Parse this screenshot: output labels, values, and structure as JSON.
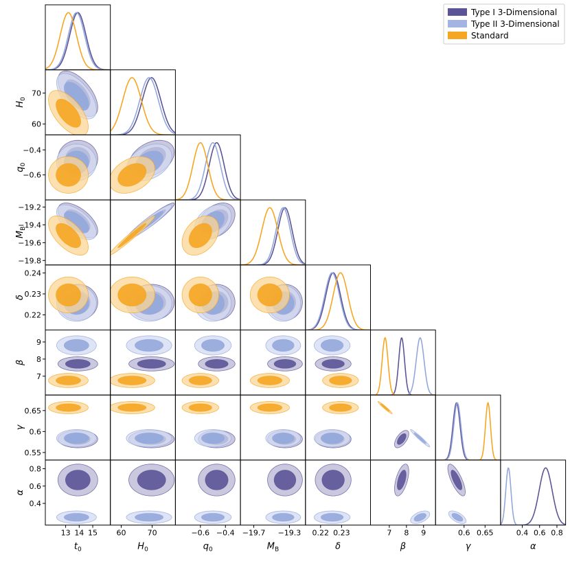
{
  "chart_data": {
    "type": "corner",
    "title": "",
    "legend": {
      "placement": "top-right",
      "entries": [
        {
          "name": "Type I 3-Dimensional",
          "color": "#5b5497"
        },
        {
          "name": "Type II 3-Dimensional",
          "color": "#a3b4e2"
        },
        {
          "name": "Standard",
          "color": "#f5a623"
        }
      ]
    },
    "parameters": [
      {
        "symbol": "t",
        "sub": "0",
        "range": [
          11.5,
          16.3
        ],
        "ticks": [
          13,
          14,
          15
        ]
      },
      {
        "symbol": "H",
        "sub": "0",
        "range": [
          56.5,
          77.5
        ],
        "ticks": [
          60,
          70
        ]
      },
      {
        "symbol": "q",
        "sub": "0",
        "range": [
          -0.8,
          -0.28
        ],
        "ticks": [
          -0.6,
          -0.4
        ]
      },
      {
        "symbol": "M",
        "sub": "B",
        "range": [
          -19.85,
          -19.12
        ],
        "ticks": [
          -19.7,
          -19.3
        ]
      },
      {
        "symbol": "δ",
        "sub": "",
        "range": [
          0.2128,
          0.2438
        ],
        "ticks": [
          0.22,
          0.23
        ]
      },
      {
        "symbol": "β",
        "sub": "",
        "range": [
          5.9,
          9.7
        ],
        "ticks": [
          7,
          8,
          9
        ]
      },
      {
        "symbol": "γ",
        "sub": "",
        "range": [
          0.532,
          0.687
        ],
        "ticks": [
          0.55,
          0.6,
          0.65
        ]
      },
      {
        "symbol": "α",
        "sub": "",
        "range": [
          0.15,
          0.9
        ],
        "ticks": [
          0.4,
          0.6,
          0.8
        ]
      }
    ],
    "row_ticks": {
      "1": [
        60,
        70
      ],
      "2": [
        -0.6,
        -0.4
      ],
      "3": [
        -19.8,
        -19.6,
        -19.4,
        -19.2
      ],
      "4": [
        0.22,
        0.23,
        0.24
      ],
      "5": [
        7,
        8,
        9
      ],
      "6": [
        0.55,
        0.6,
        0.65
      ],
      "7": [
        0.4,
        0.6,
        0.8
      ]
    },
    "bottom_ticks": {
      "0": [
        13,
        14,
        15
      ],
      "1": [
        60,
        70
      ],
      "2": [
        -0.6,
        -0.4
      ],
      "3": [
        -19.7,
        -19.3
      ],
      "4": [
        0.22,
        0.23
      ],
      "5": [
        7,
        8,
        9
      ],
      "6": [
        0.6,
        0.65
      ],
      "7": [
        0.4,
        0.6,
        0.8
      ]
    },
    "series": [
      {
        "name": "Type I 3-Dimensional",
        "color": "#5b5497",
        "fill_inner": "#5b5497",
        "fill_outer": "#b8b5d4",
        "mean": [
          13.9,
          69.8,
          -0.47,
          -19.35,
          0.226,
          7.72,
          0.582,
          0.67
        ],
        "sigma": [
          0.6,
          3.0,
          0.06,
          0.08,
          0.0035,
          0.17,
          0.0085,
          0.075
        ],
        "correlation": {
          "0-1": -0.6,
          "0-3": -0.6,
          "1-2": 0.35,
          "1-3": 0.95,
          "2-3": 0.35,
          "5-6": 0.6,
          "5-7": 0.55,
          "6-7": -0.75
        }
      },
      {
        "name": "Type II 3-Dimensional",
        "color": "#93a7dc",
        "fill_inner": "#93a7dc",
        "fill_outer": "#d3dbf2",
        "mean": [
          13.8,
          69.0,
          -0.5,
          -19.37,
          0.2255,
          8.8,
          0.584,
          0.24
        ],
        "sigma": [
          0.6,
          3.0,
          0.06,
          0.08,
          0.0035,
          0.23,
          0.0085,
          0.03
        ],
        "correlation": {
          "0-1": -0.6,
          "0-3": -0.6,
          "1-2": 0.35,
          "1-3": 0.95,
          "2-3": 0.35,
          "5-6": -0.97,
          "5-7": 0.5,
          "6-7": -0.6
        }
      },
      {
        "name": "Standard",
        "color": "#f5a623",
        "fill_inner": "#f5a623",
        "fill_outer": "#fbd594",
        "mean": [
          13.2,
          63.5,
          -0.6,
          -19.52,
          0.2295,
          6.75,
          0.657,
          null
        ],
        "sigma": [
          0.6,
          3.0,
          0.06,
          0.09,
          0.0035,
          0.17,
          0.006,
          null
        ],
        "correlation": {
          "0-1": -0.6,
          "0-3": -0.6,
          "1-2": 0.35,
          "1-3": 0.98,
          "2-3": 0.35,
          "5-6": -0.97
        }
      }
    ]
  }
}
